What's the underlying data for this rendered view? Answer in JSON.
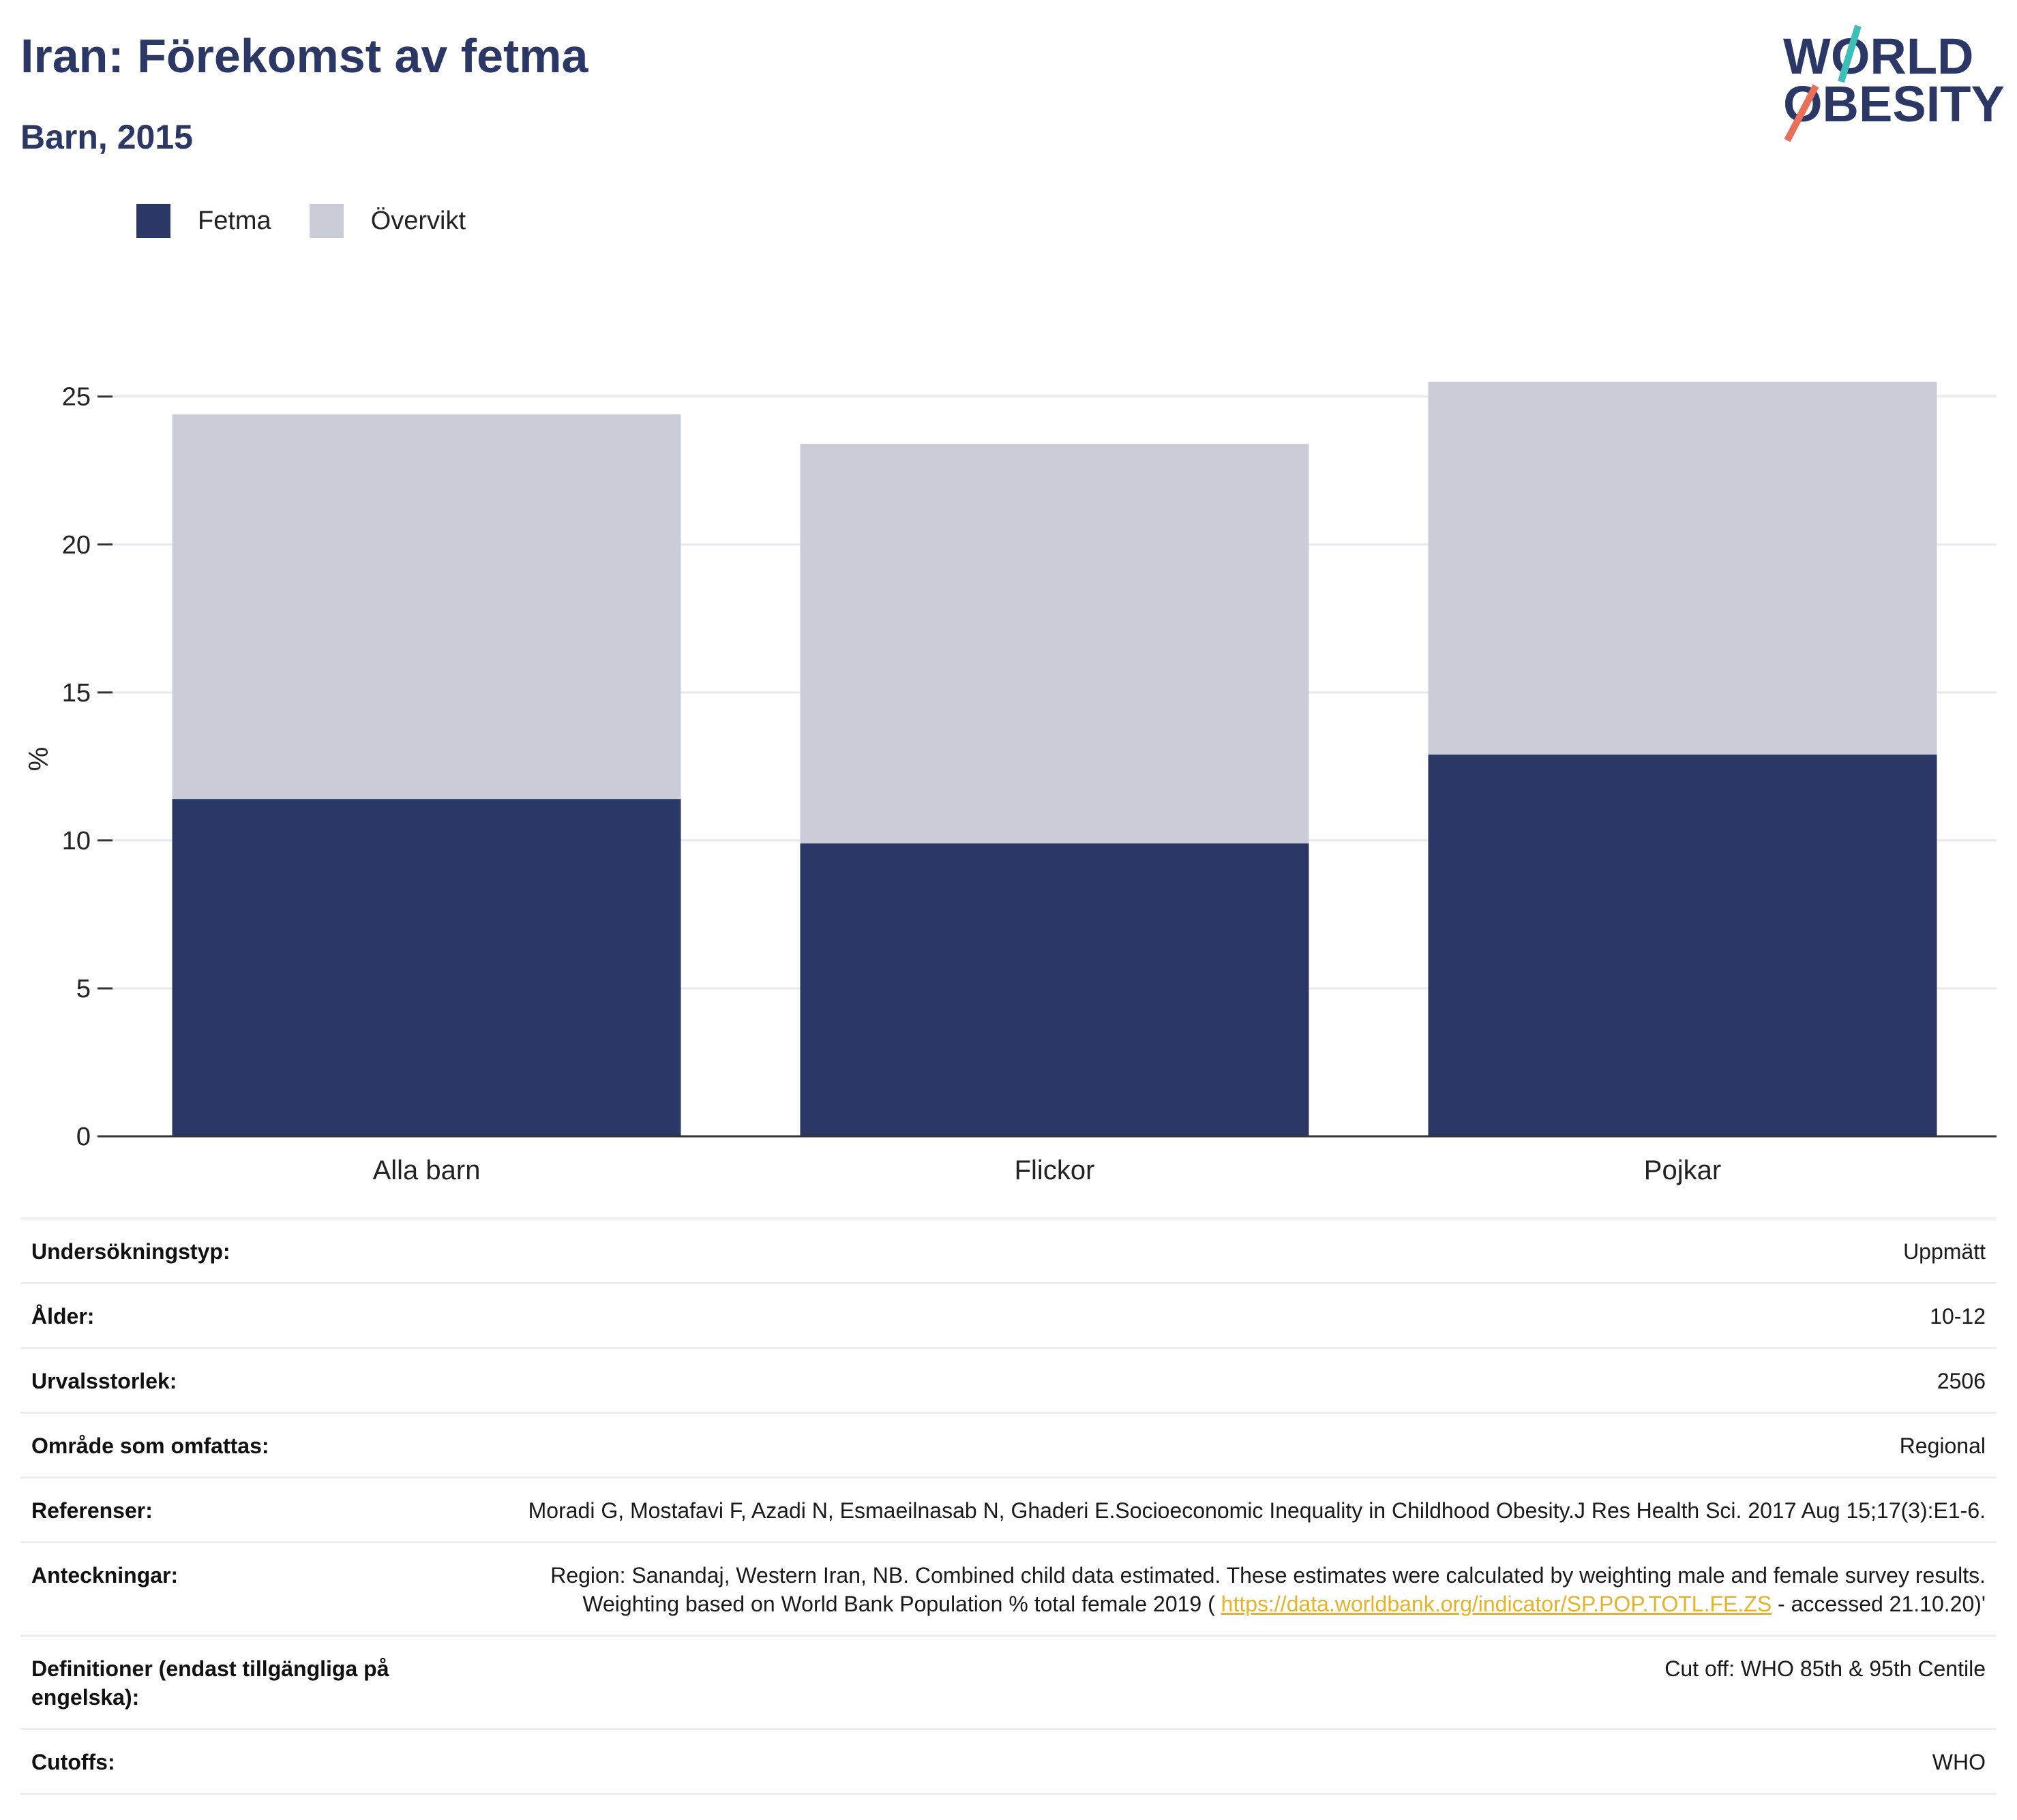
{
  "header": {
    "title": "Iran: Förekomst av fetma",
    "subtitle": "Barn, 2015"
  },
  "logo": {
    "line1": "WORLD",
    "line2": "OBESITY",
    "colors": {
      "text": "#2b3764",
      "slash_top": "#3bbfb6",
      "slash_bottom": "#e8705a"
    }
  },
  "colors": {
    "fetma": "#2b3764",
    "overvikt": "#cacdd8",
    "grid": "#e8e8ee",
    "axis": "#333333",
    "link": "#e5b327"
  },
  "legend": [
    {
      "label": "Fetma",
      "color": "#2b3764"
    },
    {
      "label": "Övervikt",
      "color": "#cacdd8"
    }
  ],
  "chart_data": {
    "type": "bar",
    "stacked": true,
    "categories": [
      "Alla barn",
      "Flickor",
      "Pojkar"
    ],
    "series": [
      {
        "name": "Fetma",
        "values": [
          11.4,
          9.9,
          12.9
        ]
      },
      {
        "name": "Övervikt",
        "values": [
          13.0,
          13.5,
          12.6
        ]
      }
    ],
    "ylabel": "%",
    "ylim": [
      0,
      25.5
    ],
    "yticks": [
      0,
      5,
      10,
      15,
      20,
      25
    ],
    "grid": true,
    "legend_position": "top-left"
  },
  "info": [
    {
      "key": "Undersökningstyp:",
      "value": "Uppmätt"
    },
    {
      "key": "Ålder:",
      "value": "10-12"
    },
    {
      "key": "Urvalsstorlek:",
      "value": "2506"
    },
    {
      "key": "Område som omfattas:",
      "value": "Regional"
    },
    {
      "key": "Referenser:",
      "value": "Moradi G, Mostafavi F, Azadi N, Esmaeilnasab N, Ghaderi E.Socioeconomic Inequality in Childhood Obesity.J Res Health Sci. 2017 Aug 15;17(3):E1-6."
    },
    {
      "key": "Anteckningar:",
      "value_pre": "Region: Sanandaj, Western Iran, NB. Combined child data estimated. These estimates were calculated by weighting male and female survey results. Weighting based on World Bank Population % total female 2019 ( ",
      "link": "https://data.worldbank.org/indicator/SP.POP.TOTL.FE.ZS",
      "value_post": " - accessed 21.10.20)'"
    },
    {
      "key": "Definitioner (endast tillgängliga på engelska):",
      "value": "Cut off: WHO 85th & 95th Centile"
    },
    {
      "key": "Cutoffs:",
      "value": "WHO"
    }
  ]
}
